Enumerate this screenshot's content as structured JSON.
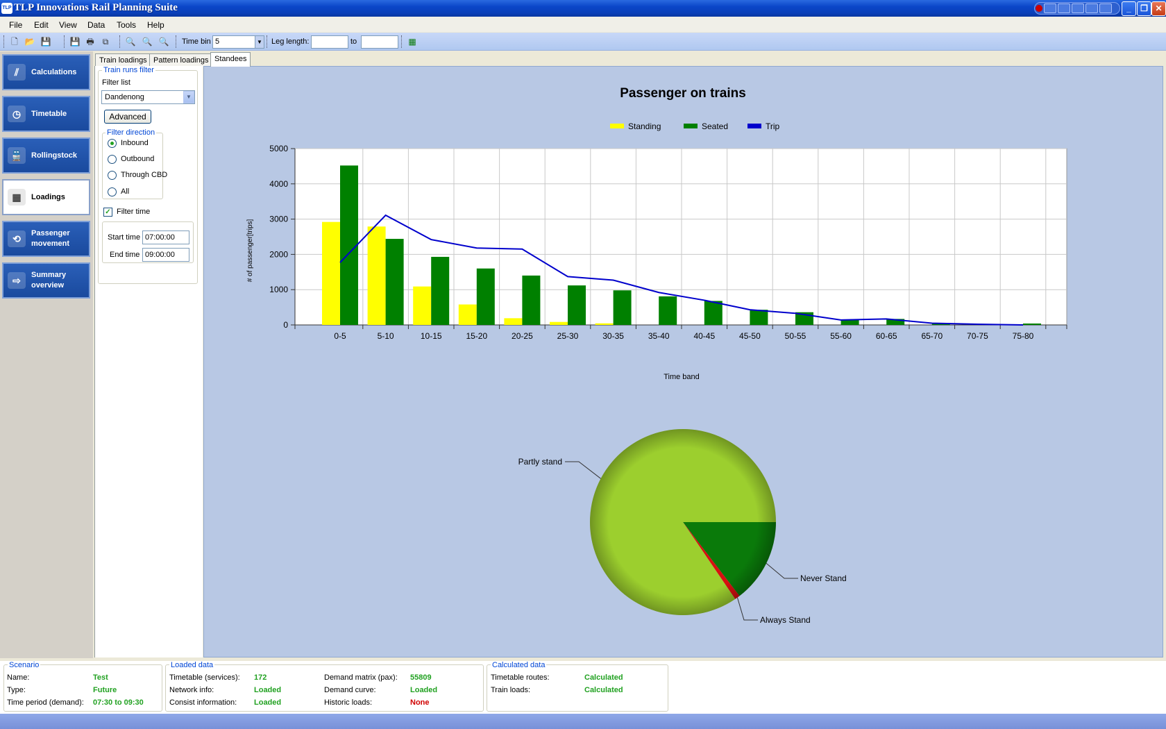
{
  "window": {
    "title": "TLP Innovations Rail Planning Suite",
    "app_icon_text": "TLP"
  },
  "menu": [
    "File",
    "Edit",
    "View",
    "Data",
    "Tools",
    "Help"
  ],
  "toolbar": {
    "time_bin_label": "Time bin",
    "time_bin_value": "5",
    "leg_length_label": "Leg length:",
    "leg_from": "",
    "to_label": "to",
    "leg_to": ""
  },
  "nav": [
    {
      "label": "Calculations",
      "icon": "rail-icon",
      "active": false
    },
    {
      "label": "Timetable",
      "icon": "clock-icon",
      "active": false
    },
    {
      "label": "Rollingstock",
      "icon": "train-icon",
      "active": false
    },
    {
      "label": "Loadings",
      "icon": "grid-chart-icon",
      "active": true
    },
    {
      "label": "Passenger movement",
      "icon": "arrows-cycle-icon",
      "active": false
    },
    {
      "label": "Summary overview",
      "icon": "arrow-right-icon",
      "active": false
    }
  ],
  "tabs": [
    {
      "label": "Train loadings",
      "active": false
    },
    {
      "label": "Pattern loadings",
      "active": false
    },
    {
      "label": "Standees",
      "active": true
    }
  ],
  "filter": {
    "group_title": "Train runs filter",
    "list_label": "Filter list",
    "list_value": "Dandenong",
    "advanced_label": "Advanced",
    "direction_title": "Filter direction",
    "directions": [
      {
        "label": "Inbound",
        "checked": true
      },
      {
        "label": "Outbound",
        "checked": false
      },
      {
        "label": "Through CBD",
        "checked": false
      },
      {
        "label": "All",
        "checked": false
      }
    ],
    "filter_time_label": "Filter time",
    "filter_time_checked": true,
    "start_time_label": "Start time",
    "start_time": "07:00:00",
    "end_time_label": "End time",
    "end_time": "09:00:00"
  },
  "chart_data": [
    {
      "type": "bar",
      "title": "Passenger on trains",
      "xlabel": "Time band",
      "ylabel": "# of passenger[trips]",
      "ylim": [
        0,
        5000
      ],
      "yticks": [
        0,
        1000,
        2000,
        3000,
        4000,
        5000
      ],
      "grid": true,
      "legend_position": "top-center",
      "categories": [
        "0-5",
        "5-10",
        "10-15",
        "15-20",
        "20-25",
        "25-30",
        "30-35",
        "35-40",
        "40-45",
        "45-50",
        "50-55",
        "55-60",
        "60-65",
        "65-70",
        "70-75",
        "75-80"
      ],
      "series": [
        {
          "name": "Standing",
          "kind": "bar",
          "color": "#ffff00",
          "values": [
            2920,
            2790,
            1090,
            580,
            190,
            85,
            45,
            0,
            0,
            0,
            0,
            0,
            0,
            0,
            0,
            0
          ]
        },
        {
          "name": "Seated",
          "kind": "bar",
          "color": "#008000",
          "values": [
            4520,
            2440,
            1930,
            1600,
            1400,
            1120,
            980,
            810,
            680,
            430,
            360,
            150,
            170,
            50,
            20,
            40
          ]
        },
        {
          "name": "Trip",
          "kind": "line",
          "color": "#0000cc",
          "values": [
            1770,
            3110,
            2420,
            2180,
            2150,
            1370,
            1270,
            920,
            700,
            430,
            330,
            140,
            170,
            50,
            20,
            0
          ]
        }
      ]
    },
    {
      "type": "pie",
      "slices": [
        {
          "label": "Partly stand",
          "value": 84.5,
          "color": "#9ccf2e"
        },
        {
          "label": "Never Stand",
          "value": 14.6,
          "color": "#0a7a0a"
        },
        {
          "label": "Always Stand",
          "value": 0.9,
          "color": "#d81010"
        }
      ]
    }
  ],
  "status": {
    "scenario": {
      "title": "Scenario",
      "rows": [
        {
          "label": "Name:",
          "value": "Test"
        },
        {
          "label": "Type:",
          "value": "Future"
        },
        {
          "label": "Time period (demand):",
          "value": "07:30 to 09:30"
        }
      ]
    },
    "loaded": {
      "title": "Loaded data",
      "rows": [
        {
          "label": "Timetable (services):",
          "value": "172"
        },
        {
          "label": "Network info:",
          "value": "Loaded"
        },
        {
          "label": "Consist information:",
          "value": "Loaded"
        },
        {
          "label": "Demand matrix (pax):",
          "value": "55809"
        },
        {
          "label": "Demand curve:",
          "value": "Loaded"
        },
        {
          "label": "Historic loads:",
          "value": "None",
          "bad": true
        }
      ]
    },
    "calculated": {
      "title": "Calculated data",
      "rows": [
        {
          "label": "Timetable routes:",
          "value": "Calculated"
        },
        {
          "label": "Train loads:",
          "value": "Calculated"
        }
      ]
    }
  }
}
